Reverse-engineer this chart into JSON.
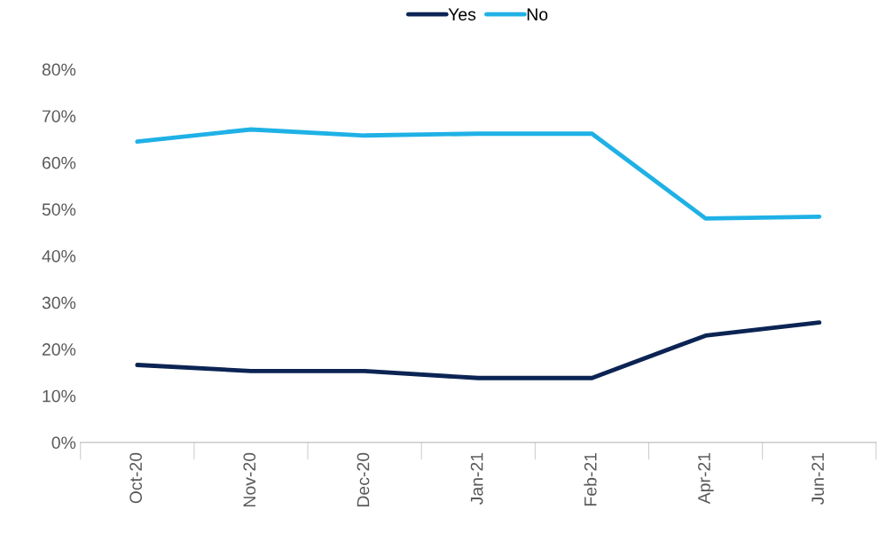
{
  "chart_data": {
    "type": "line",
    "categories": [
      "Oct-20",
      "Nov-20",
      "Dec-20",
      "Jan-21",
      "Feb-21",
      "Apr-21",
      "Jun-21"
    ],
    "series": [
      {
        "name": "Yes",
        "color": "#0c2454",
        "values": [
          16.6,
          15.3,
          15.3,
          13.8,
          13.8,
          22.9,
          25.7
        ]
      },
      {
        "name": "No",
        "color": "#1fb1e6",
        "values": [
          64.5,
          67.1,
          65.8,
          66.2,
          66.2,
          48.0,
          48.4
        ]
      }
    ],
    "ylim": [
      0,
      80
    ],
    "yticks": [
      {
        "value": 0,
        "label": "0%"
      },
      {
        "value": 10,
        "label": "10%"
      },
      {
        "value": 20,
        "label": "20%"
      },
      {
        "value": 30,
        "label": "30%"
      },
      {
        "value": 40,
        "label": "40%"
      },
      {
        "value": 50,
        "label": "50%"
      },
      {
        "value": 60,
        "label": "60%"
      },
      {
        "value": 70,
        "label": "70%"
      },
      {
        "value": 80,
        "label": "80%"
      }
    ],
    "grid": false,
    "legend": "top",
    "marker": "none",
    "line_style": "solid"
  }
}
